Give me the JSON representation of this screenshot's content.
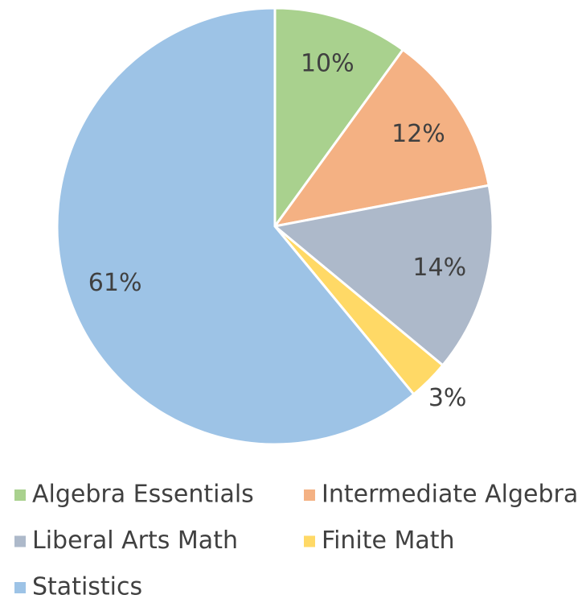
{
  "chart_data": {
    "type": "pie",
    "categories": [
      "Algebra Essentials",
      "Intermediate Algebra",
      "Liberal Arts Math",
      "Finite Math",
      "Statistics"
    ],
    "values": [
      10,
      12,
      14,
      3,
      61
    ],
    "value_labels": [
      "10%",
      "12%",
      "14%",
      "3%",
      "61%"
    ],
    "colors": [
      "#a9d18e",
      "#f4b183",
      "#adb9ca",
      "#ffd966",
      "#9dc3e6"
    ],
    "legend": "bottom"
  }
}
